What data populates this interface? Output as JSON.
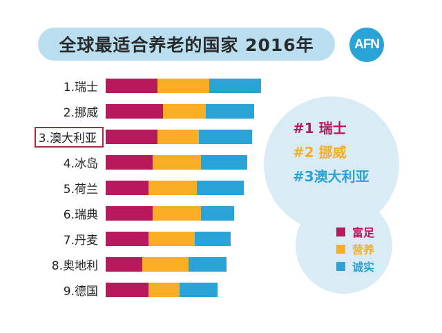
{
  "title": "全球最适合养老的国家 2016年",
  "logo_text": "AFN",
  "colors": {
    "wealth": "#b7195c",
    "nutrition": "#f7ae25",
    "honesty": "#2aa3d6"
  },
  "top3": [
    {
      "text": "#1 瑞士",
      "color": "#b7195c"
    },
    {
      "text": "#2 挪威",
      "color": "#f7ae25"
    },
    {
      "text": "#3澳大利亚",
      "color": "#2aa3d6"
    }
  ],
  "legend": [
    {
      "label": "富足",
      "color": "#b7195c"
    },
    {
      "label": "营养",
      "color": "#f7ae25"
    },
    {
      "label": "诚实",
      "color": "#2aa3d6"
    }
  ],
  "chart_data": {
    "type": "bar",
    "stacked": true,
    "orientation": "horizontal",
    "title": "全球最适合养老的国家 2016年",
    "categories": [
      "1.瑞士",
      "2.挪威",
      "3.澳大利亚",
      "4.冰岛",
      "5.荷兰",
      "6.瑞典",
      "7.丹麦",
      "8.奥地利",
      "9.德国"
    ],
    "highlighted_category": "3.澳大利亚",
    "series": [
      {
        "name": "富足",
        "values": [
          75,
          83,
          75,
          68,
          62,
          68,
          62,
          53,
          62
        ]
      },
      {
        "name": "营养",
        "values": [
          75,
          62,
          60,
          70,
          70,
          70,
          67,
          67,
          45
        ]
      },
      {
        "name": "诚实",
        "values": [
          75,
          70,
          77,
          67,
          68,
          48,
          52,
          55,
          55
        ]
      }
    ],
    "xlabel": "",
    "ylabel": ""
  }
}
